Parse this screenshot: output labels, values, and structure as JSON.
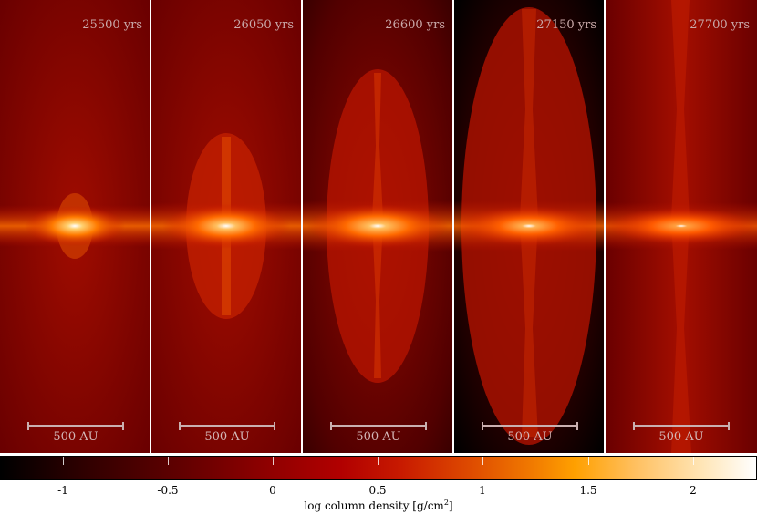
{
  "panels": [
    {
      "time": "25500 yrs",
      "scale": "500 AU"
    },
    {
      "time": "26050 yrs",
      "scale": "500 AU"
    },
    {
      "time": "26600 yrs",
      "scale": "500 AU"
    },
    {
      "time": "27150 yrs",
      "scale": "500 AU"
    },
    {
      "time": "27700 yrs",
      "scale": "500 AU"
    }
  ],
  "colorbar": {
    "ticks": [
      "-1",
      "-0.5",
      "0",
      "0.5",
      "1",
      "1.5",
      "2"
    ],
    "label_main": "log column density [g/cm",
    "label_sup": "2",
    "label_end": "]"
  },
  "colors": {
    "background_dark": "#6e0000",
    "ambient": "#8f0a00",
    "lobe": "#b51a00",
    "core": "#fff2c0",
    "annotation": "#c9a9a9"
  }
}
